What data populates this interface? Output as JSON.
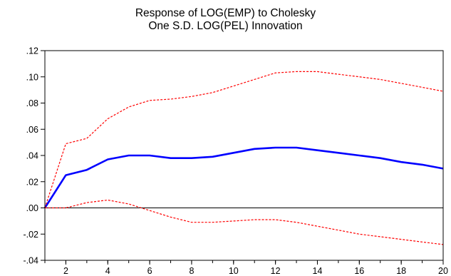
{
  "chart_data": {
    "type": "line",
    "title": "Response of LOG(EMP) to Cholesky",
    "subtitle": "One S.D. LOG(PEL) Innovation",
    "xlabel": "",
    "ylabel": "",
    "xlim": [
      1,
      20
    ],
    "ylim": [
      -0.04,
      0.12
    ],
    "x": [
      1,
      2,
      3,
      4,
      5,
      6,
      7,
      8,
      9,
      10,
      11,
      12,
      13,
      14,
      15,
      16,
      17,
      18,
      19,
      20
    ],
    "x_ticks": [
      2,
      4,
      6,
      8,
      10,
      12,
      14,
      16,
      18,
      20
    ],
    "y_ticks": [
      -0.04,
      -0.02,
      0.0,
      0.02,
      0.04,
      0.06,
      0.08,
      0.1,
      0.12
    ],
    "y_tick_labels": [
      "-.04",
      "-.02",
      ".00",
      ".02",
      ".04",
      ".06",
      ".08",
      ".10",
      ".12"
    ],
    "grid": false,
    "series": [
      {
        "role": "response",
        "color": "#0000ff",
        "style": "solid",
        "values": [
          0.0,
          0.025,
          0.029,
          0.037,
          0.04,
          0.04,
          0.038,
          0.038,
          0.039,
          0.042,
          0.045,
          0.046,
          0.046,
          0.044,
          0.042,
          0.04,
          0.038,
          0.035,
          0.033,
          0.03
        ]
      },
      {
        "role": "upper_band",
        "color": "#ff0000",
        "style": "dashed",
        "values": [
          0.0,
          0.049,
          0.053,
          0.068,
          0.077,
          0.082,
          0.083,
          0.085,
          0.088,
          0.093,
          0.098,
          0.103,
          0.104,
          0.104,
          0.102,
          0.1,
          0.098,
          0.095,
          0.092,
          0.089
        ]
      },
      {
        "role": "lower_band",
        "color": "#ff0000",
        "style": "dashed",
        "values": [
          0.0,
          0.0,
          0.004,
          0.006,
          0.003,
          -0.002,
          -0.007,
          -0.011,
          -0.011,
          -0.01,
          -0.009,
          -0.009,
          -0.011,
          -0.014,
          -0.017,
          -0.02,
          -0.022,
          -0.024,
          -0.026,
          -0.028
        ]
      }
    ]
  }
}
